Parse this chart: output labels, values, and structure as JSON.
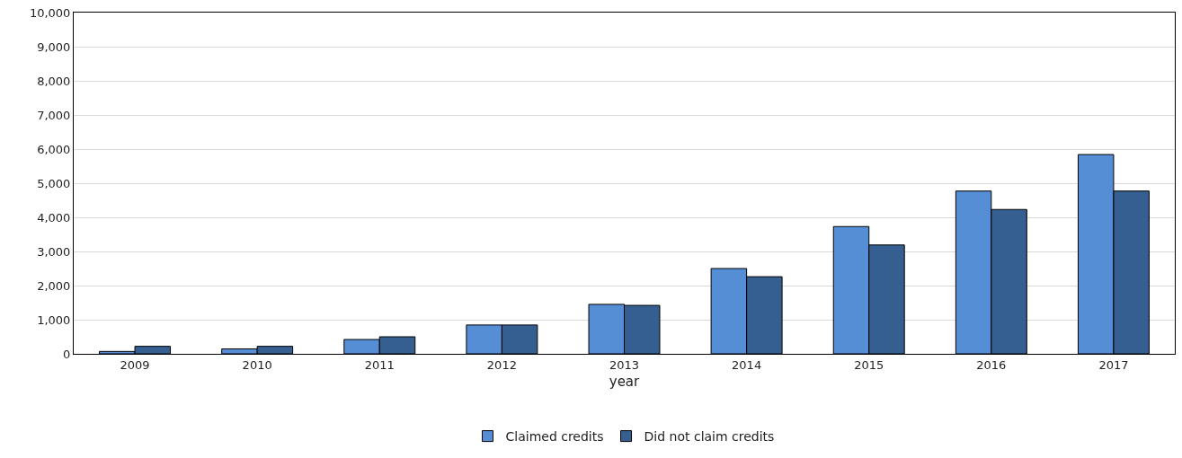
{
  "chart_data": {
    "type": "bar",
    "xlabel": "year",
    "categories": [
      "2009",
      "2010",
      "2011",
      "2012",
      "2013",
      "2014",
      "2015",
      "2016",
      "2017"
    ],
    "series": [
      {
        "name": "Claimed credits",
        "color": "#558ed5",
        "values": [
          70,
          145,
          420,
          845,
          1450,
          2500,
          3730,
          4770,
          5840
        ]
      },
      {
        "name": "Did not claim credits",
        "color": "#355f91",
        "values": [
          220,
          220,
          500,
          845,
          1420,
          2260,
          3190,
          4230,
          4770
        ]
      }
    ],
    "ylim": [
      0,
      10000
    ],
    "yticks": [
      {
        "value": 0,
        "label": "0"
      },
      {
        "value": 1000,
        "label": "1,000"
      },
      {
        "value": 2000,
        "label": "2,000"
      },
      {
        "value": 3000,
        "label": "3,000"
      },
      {
        "value": 4000,
        "label": "4,000"
      },
      {
        "value": 5000,
        "label": "5,000"
      },
      {
        "value": 6000,
        "label": "6,000"
      },
      {
        "value": 7000,
        "label": "7,000"
      },
      {
        "value": 8000,
        "label": "8,000"
      },
      {
        "value": 9000,
        "label": "9,000"
      },
      {
        "value": 10000,
        "label": "10,000"
      }
    ],
    "grid": "y",
    "legend": "bottom"
  }
}
